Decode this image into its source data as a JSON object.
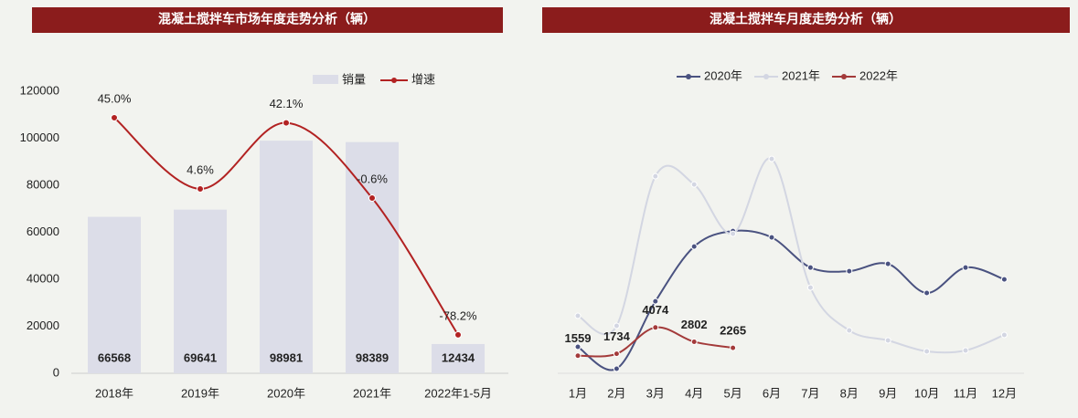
{
  "chart_data": [
    {
      "type": "bar",
      "title": "混凝土搅拌车市场年度走势分析（辆）",
      "categories": [
        "2018年",
        "2019年",
        "2020年",
        "2021年",
        "2022年1-5月"
      ],
      "series": [
        {
          "name": "销量",
          "color": "#dcdde8",
          "values": [
            66568,
            69641,
            98981,
            98389,
            12434
          ]
        },
        {
          "name": "增速",
          "color": "#b22222",
          "axis": "y2",
          "values": [
            45.0,
            4.6,
            42.1,
            -0.6,
            -78.2
          ],
          "value_labels": [
            "45.0%",
            "4.6%",
            "42.1%",
            "-0.6%",
            "-78.2%"
          ]
        }
      ],
      "ylim": [
        0,
        120000
      ],
      "yticks": [
        0,
        20000,
        40000,
        60000,
        80000,
        100000,
        120000
      ],
      "y2lim": [
        -100,
        60
      ],
      "legend": "top"
    },
    {
      "type": "line",
      "title": "混凝土搅拌车月度走势分析（辆）",
      "categories": [
        "1月",
        "2月",
        "3月",
        "4月",
        "5月",
        "6月",
        "7月",
        "8月",
        "9月",
        "10月",
        "11月",
        "12月"
      ],
      "series": [
        {
          "name": "2020年",
          "color": "#4a5280",
          "values": [
            2352,
            405,
            6400,
            11270,
            12650,
            12080,
            9400,
            9080,
            9730,
            7140,
            9400,
            8350
          ]
        },
        {
          "name": "2021年",
          "color": "#d3d6e2",
          "values": [
            5110,
            4220,
            17520,
            16790,
            12410,
            19060,
            7620,
            3810,
            2920,
            1950,
            2030,
            3410
          ]
        },
        {
          "name": "2022年",
          "color": "#a33a3a",
          "values": [
            1559,
            1734,
            4074,
            2802,
            2265,
            null,
            null,
            null,
            null,
            null,
            null,
            null
          ]
        }
      ],
      "ylim": [
        0,
        28000
      ],
      "legend": "top"
    }
  ]
}
